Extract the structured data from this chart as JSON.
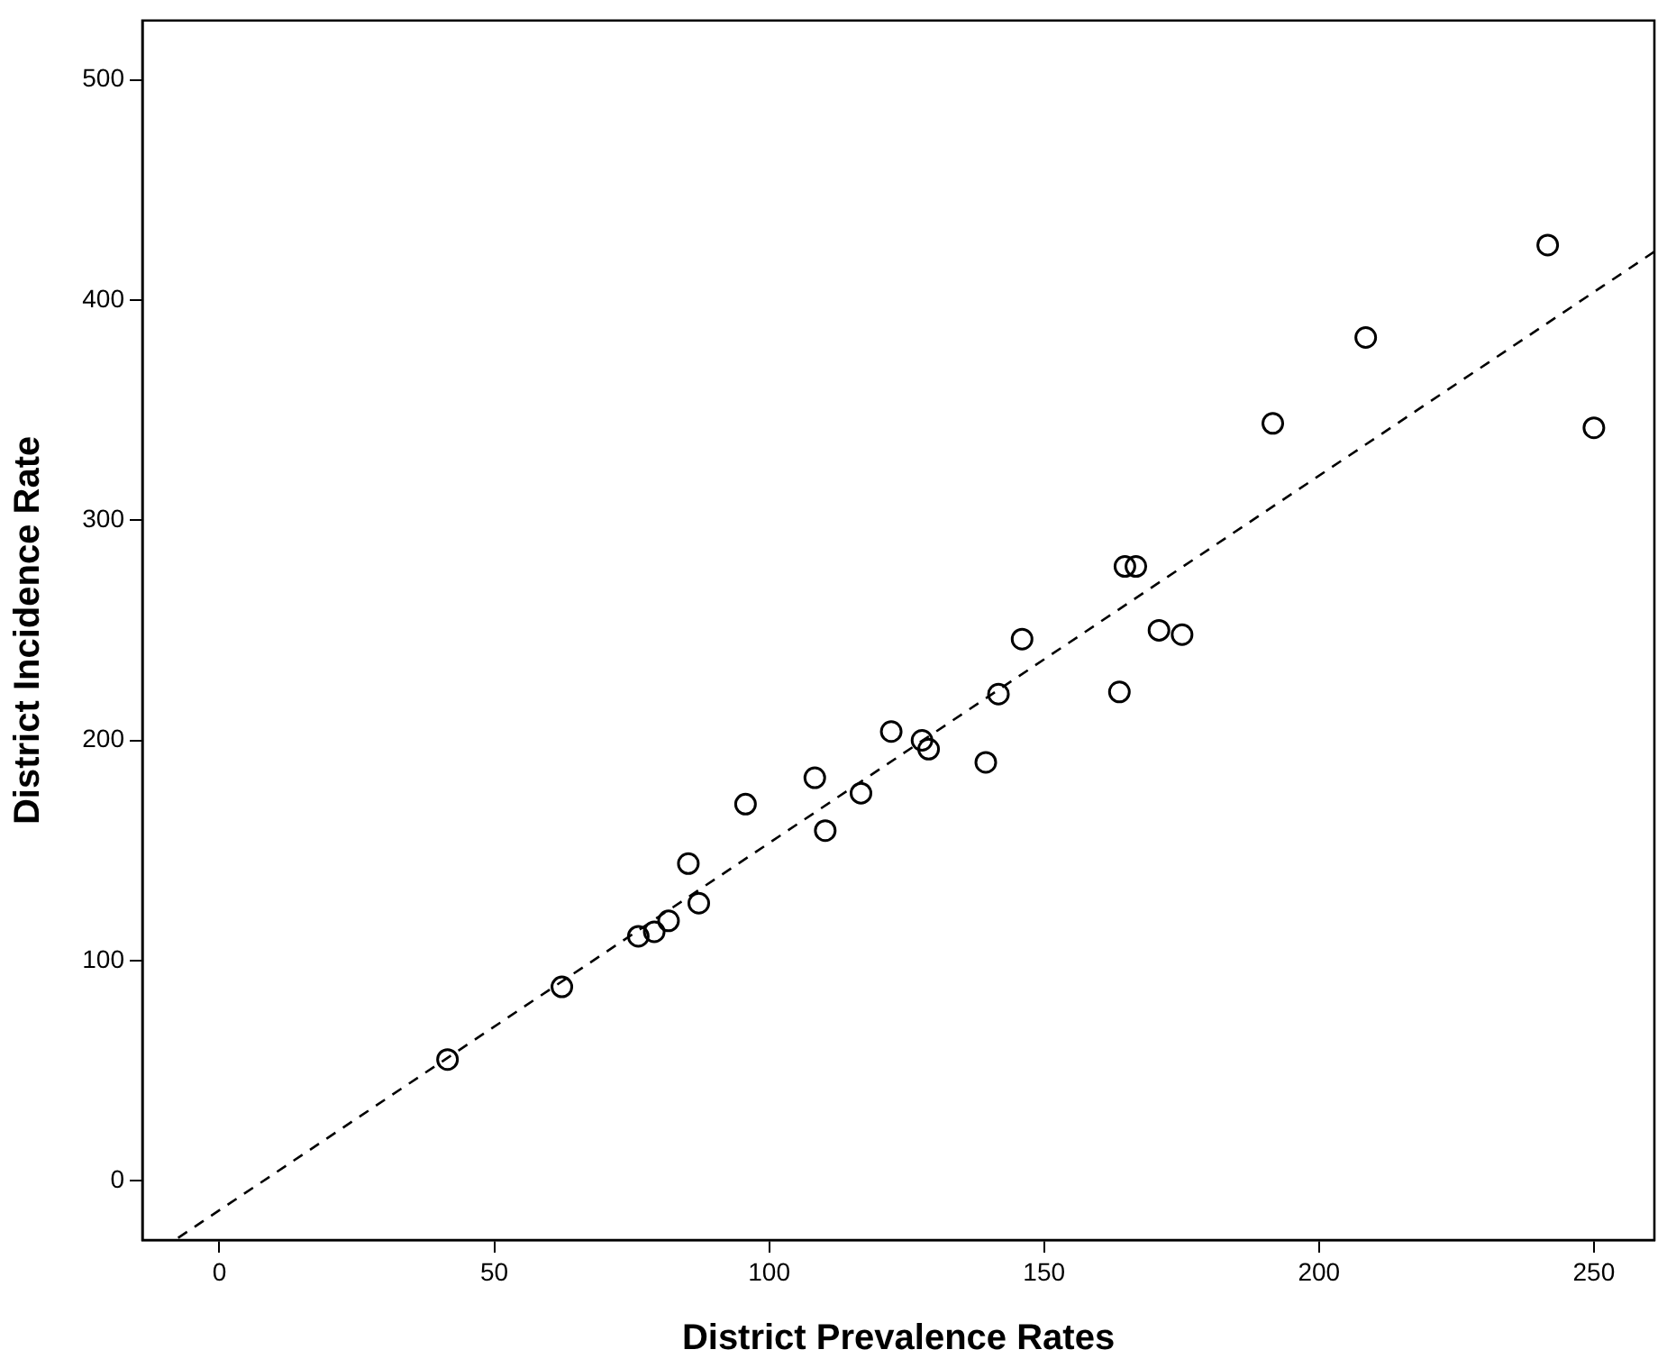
{
  "chart_data": {
    "type": "scatter",
    "xlabel": "District Prevalence Rates",
    "ylabel": "District Incidence Rate",
    "xlim": [
      -14,
      261
    ],
    "ylim": [
      -27,
      527
    ],
    "xticks": [
      0,
      50,
      100,
      150,
      200,
      250
    ],
    "yticks": [
      0,
      100,
      200,
      300,
      400,
      500
    ],
    "series": [
      {
        "type": "scatter",
        "color": "#000000",
        "marker": "circle",
        "x": [
          41.5,
          62.3,
          76.2,
          79.1,
          81.7,
          85.3,
          87.2,
          95.7,
          108.3,
          110.2,
          116.7,
          122.2,
          127.8,
          129,
          139.4,
          141.7,
          146,
          163.7,
          164.7,
          166.7,
          170.9,
          175.1,
          191.6,
          208.5,
          241.6,
          250
        ],
        "values": [
          55,
          88,
          111,
          113,
          118,
          144,
          126,
          171,
          183,
          159,
          176,
          204,
          200,
          196,
          190,
          221,
          246,
          222,
          279,
          279,
          250,
          248,
          344,
          383,
          425,
          342
        ]
      },
      {
        "type": "line",
        "color": "#000000",
        "marker": "none",
        "line_style": "dashed",
        "x": [
          -7.5,
          261
        ],
        "values": [
          -26,
          422
        ]
      }
    ]
  }
}
